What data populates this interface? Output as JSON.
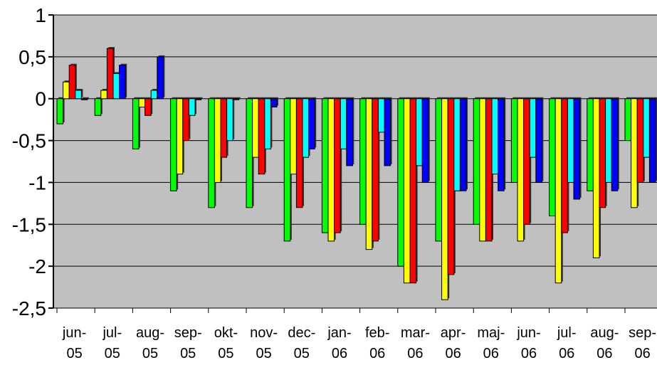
{
  "chart_data": {
    "type": "bar",
    "title": "",
    "xlabel": "",
    "ylabel": "",
    "ylim": [
      -2.5,
      1
    ],
    "yticks": [
      1,
      0.5,
      0,
      -0.5,
      -1,
      -1.5,
      -2,
      -2.5
    ],
    "ytick_labels": [
      "1",
      "0,5",
      "0",
      "-0,5",
      "-1",
      "-1,5",
      "-2",
      "-2,5"
    ],
    "grid": true,
    "legend": "none",
    "plot_background": "#c0c0c0",
    "categories": [
      [
        "jun-",
        "05"
      ],
      [
        "jul-",
        "05"
      ],
      [
        "aug-",
        "05"
      ],
      [
        "sep-",
        "05"
      ],
      [
        "okt-",
        "05"
      ],
      [
        "nov-",
        "05"
      ],
      [
        "dec-",
        "05"
      ],
      [
        "jan-",
        "06"
      ],
      [
        "feb-",
        "06"
      ],
      [
        "mar-",
        "06"
      ],
      [
        "apr-",
        "06"
      ],
      [
        "maj-",
        "06"
      ],
      [
        "jun-",
        "06"
      ],
      [
        "jul-",
        "06"
      ],
      [
        "aug-",
        "06"
      ],
      [
        "sep-",
        "06"
      ]
    ],
    "series": [
      {
        "color": "#00ff00",
        "values": [
          -0.3,
          -0.2,
          -0.6,
          -1.1,
          -1.3,
          -1.3,
          -1.7,
          -1.6,
          -1.5,
          -2.0,
          -1.7,
          -1.5,
          -1.0,
          -1.4,
          -1.1,
          -0.5
        ]
      },
      {
        "color": "#ffff00",
        "values": [
          0.2,
          0.1,
          -0.1,
          -0.9,
          -1.0,
          -0.7,
          -0.9,
          -1.7,
          -1.8,
          -2.2,
          -2.4,
          -1.7,
          -1.7,
          -2.2,
          -1.9,
          -1.3
        ]
      },
      {
        "color": "#ff0000",
        "values": [
          0.4,
          0.6,
          -0.2,
          -0.5,
          -0.7,
          -0.9,
          -1.3,
          -1.6,
          -1.7,
          -2.2,
          -2.1,
          -1.7,
          -1.5,
          -1.6,
          -1.3,
          -1.0
        ]
      },
      {
        "color": "#00ffff",
        "values": [
          0.1,
          0.3,
          0.1,
          -0.2,
          -0.5,
          -0.6,
          -0.7,
          -0.6,
          -0.4,
          -0.8,
          -1.1,
          -0.9,
          -0.7,
          -1.0,
          -1.0,
          -0.7
        ]
      },
      {
        "color": "#0000ff",
        "values": [
          0.0,
          0.4,
          0.5,
          0.0,
          0.0,
          -0.1,
          -0.6,
          -0.8,
          -0.8,
          -1.0,
          -1.1,
          -1.1,
          -1.0,
          -1.2,
          -1.1,
          -1.0
        ]
      }
    ]
  }
}
